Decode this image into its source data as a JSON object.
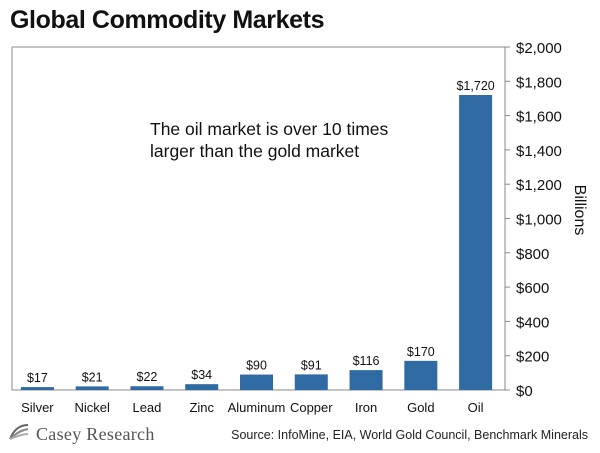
{
  "title": "Global Commodity Markets",
  "annotation": {
    "line1": "The oil market is over 10 times",
    "line2": "larger than the gold market"
  },
  "brand": {
    "name": "Casey Research",
    "icon": "casey-research-logo-icon"
  },
  "source": "Source: InfoMine, EIA, World Gold Council, Benchmark Minerals",
  "colors": {
    "bar": "#2f6aa3",
    "axis": "#888888"
  },
  "chart_data": {
    "type": "bar",
    "title": "Global Commodity Markets",
    "categories": [
      "Silver",
      "Nickel",
      "Lead",
      "Zinc",
      "Aluminum",
      "Copper",
      "Iron",
      "Gold",
      "Oil"
    ],
    "values": [
      17,
      21,
      22,
      34,
      90,
      91,
      116,
      170,
      1720
    ],
    "value_labels": [
      "$17",
      "$21",
      "$22",
      "$34",
      "$90",
      "$91",
      "$116",
      "$170",
      "$1,720"
    ],
    "ylabel": "Billions",
    "ylim": [
      0,
      2000
    ],
    "yticks": [
      0,
      200,
      400,
      600,
      800,
      1000,
      1200,
      1400,
      1600,
      1800,
      2000
    ],
    "ytick_labels": [
      "$0",
      "$200",
      "$400",
      "$600",
      "$800",
      "$1,000",
      "$1,200",
      "$1,400",
      "$1,600",
      "$1,800",
      "$2,000"
    ],
    "grid": false,
    "y_axis_side": "right"
  }
}
